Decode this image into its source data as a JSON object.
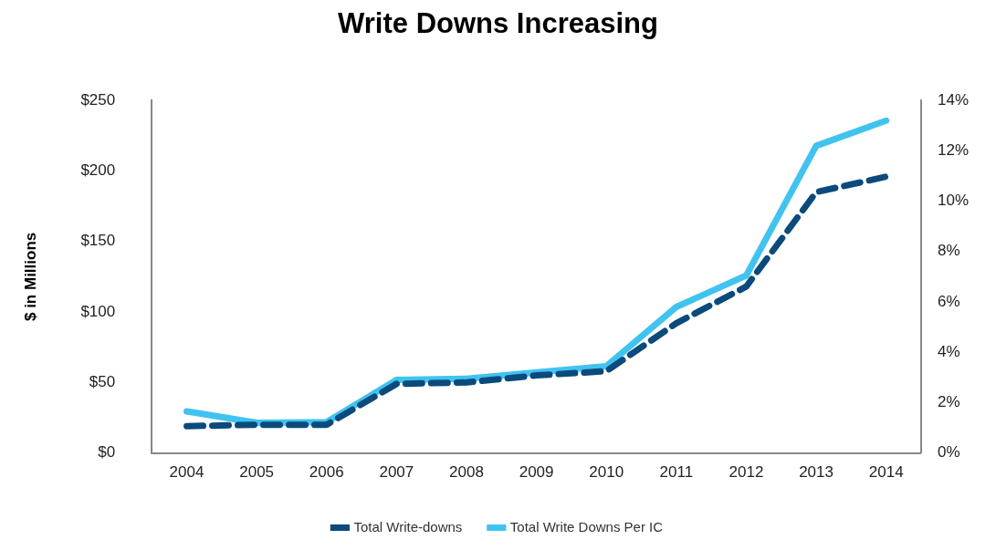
{
  "chart_data": {
    "type": "line",
    "title": "Write Downs Increasing",
    "ylabel": "$ in Millions",
    "categories": [
      "2004",
      "2005",
      "2006",
      "2007",
      "2008",
      "2009",
      "2010",
      "2011",
      "2012",
      "2013",
      "2014"
    ],
    "series": [
      {
        "name": "Total Write-downs",
        "color": "#0b4a7c",
        "line_style": "dashed",
        "axis": "y",
        "values": [
          19,
          20,
          20,
          49,
          50,
          55,
          58,
          92,
          118,
          185,
          196
        ]
      },
      {
        "name": "Total Write Downs Per IC",
        "color": "#41c3f0",
        "line_style": "solid",
        "axis": "y2",
        "values": [
          1.65,
          1.2,
          1.23,
          2.9,
          2.95,
          3.2,
          3.45,
          5.8,
          7.05,
          12.2,
          13.2
        ]
      }
    ],
    "ylim": [
      0,
      250
    ],
    "yticks": [
      {
        "value": 0,
        "label": "$0"
      },
      {
        "value": 50,
        "label": "$50"
      },
      {
        "value": 100,
        "label": "$100"
      },
      {
        "value": 150,
        "label": "$150"
      },
      {
        "value": 200,
        "label": "$200"
      },
      {
        "value": 250,
        "label": "$250"
      }
    ],
    "y2lim": [
      0,
      14
    ],
    "y2ticks": [
      {
        "value": 0,
        "label": "0%"
      },
      {
        "value": 2,
        "label": "2%"
      },
      {
        "value": 4,
        "label": "4%"
      },
      {
        "value": 6,
        "label": "6%"
      },
      {
        "value": 8,
        "label": "8%"
      },
      {
        "value": 10,
        "label": "10%"
      },
      {
        "value": 12,
        "label": "12%"
      },
      {
        "value": 14,
        "label": "14%"
      }
    ],
    "grid": false,
    "legend": "bottom",
    "marker": "none"
  }
}
